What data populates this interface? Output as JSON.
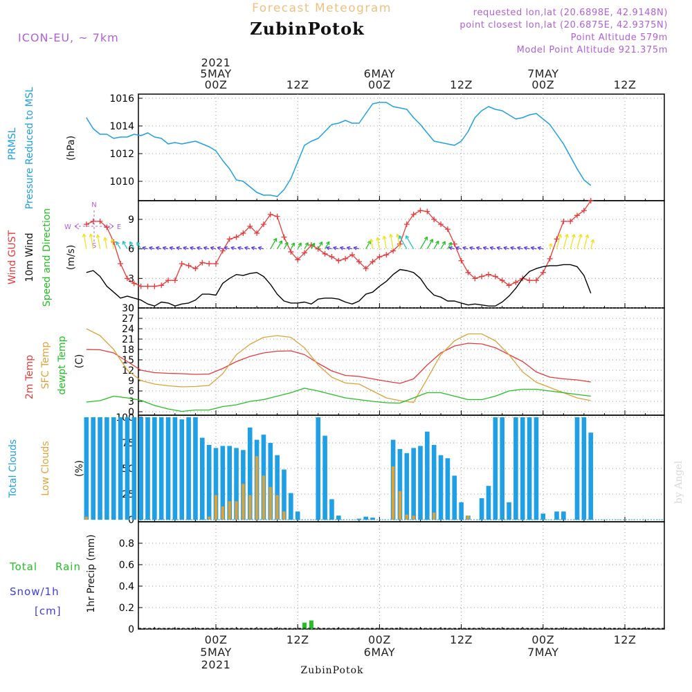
{
  "header": {
    "subtitle": "Forecast Meteogram",
    "location": "ZubinPotok",
    "model": "ICON-EU, ~ 7km",
    "requested": "requested lon,lat (20.6898E, 42.9148N)",
    "closest": "point closest lon,lat (20.6875E, 42.9375N)",
    "point_alt": "Point Altitude 579m",
    "model_alt": "Model Point Altitude 921.375m",
    "footer_location": "ZubinPotok",
    "watermark": "by Angel"
  },
  "time_axis": {
    "top": [
      {
        "h": 0,
        "lines": [
          "2021",
          "5MAY",
          "00Z"
        ]
      },
      {
        "h": 12,
        "lines": [
          "12Z"
        ]
      },
      {
        "h": 24,
        "lines": [
          "6MAY",
          "00Z"
        ]
      },
      {
        "h": 36,
        "lines": [
          "12Z"
        ]
      },
      {
        "h": 48,
        "lines": [
          "7MAY",
          "00Z"
        ]
      },
      {
        "h": 60,
        "lines": [
          "12Z"
        ]
      }
    ],
    "bottom": [
      {
        "h": 0,
        "lines": [
          "00Z",
          "5MAY",
          "2021"
        ]
      },
      {
        "h": 12,
        "lines": [
          "12Z"
        ]
      },
      {
        "h": 24,
        "lines": [
          "00Z",
          "6MAY"
        ]
      },
      {
        "h": 36,
        "lines": [
          "12Z"
        ]
      },
      {
        "h": 48,
        "lines": [
          "00Z",
          "7MAY"
        ]
      },
      {
        "h": 60,
        "lines": [
          "12Z"
        ]
      }
    ]
  },
  "panel_labels": {
    "prmsl": [
      "PRMSL",
      "Pressure Reduced to MSL",
      "(hPa)"
    ],
    "wind": [
      "Wind GUST",
      "10m Wind",
      "Speed and Direction",
      "(m/s)"
    ],
    "compass": {
      "n": "N",
      "s": "S",
      "w": "W",
      "e": "E"
    },
    "temp": [
      "2m Temp",
      "SFC Temp",
      "dewpt Temp",
      "(C)"
    ],
    "clouds": [
      "Total Clouds",
      "Low Clouds",
      "(%)"
    ],
    "precip": [
      "Total",
      "Rain",
      "Snow/1h",
      "[cm]",
      "1hr Precip (mm)"
    ]
  },
  "colors": {
    "pressure": "#1e9fe6",
    "gust": "#e8393a",
    "wind": "#000000",
    "t2m": "#e8393a",
    "tsfc": "#dca23a",
    "dewpt": "#22c022",
    "total_clouds": "#1e9fe6",
    "low_clouds": "#dca23a",
    "rain": "#22c022",
    "snow": "#3c3ce6",
    "label_purple": "#b060d8",
    "title_orange": "#f0c080"
  },
  "chart_data": [
    {
      "type": "line",
      "name": "prmsl",
      "ylabel": "(hPa)",
      "ylim": [
        1008.6,
        1016.3
      ],
      "yticks": [
        1010,
        1012,
        1014,
        1016
      ],
      "x_unit": "hours since 5MAY 00Z",
      "xlim": [
        -19,
        55
      ],
      "x": [
        -19,
        -18,
        -17,
        -16,
        -15,
        -14,
        -13,
        -12,
        -11,
        -10,
        -9,
        -8,
        -7,
        -6,
        -5,
        -4,
        -3,
        -2,
        -1,
        0,
        1,
        2,
        3,
        4,
        5,
        6,
        7,
        8,
        9,
        10,
        11,
        12,
        13,
        14,
        15,
        16,
        17,
        18,
        19,
        20,
        21,
        22,
        23,
        24,
        25,
        26,
        27,
        28,
        29,
        30,
        31,
        32,
        33,
        34,
        35,
        36,
        37,
        38,
        39,
        40,
        41,
        42,
        43,
        44,
        45,
        46,
        47,
        48,
        49,
        50,
        51,
        52,
        53,
        54,
        55
      ],
      "values": [
        1014.6,
        1013.8,
        1013.4,
        1013.4,
        1013.1,
        1013.2,
        1013.2,
        1013.4,
        1013.3,
        1013.5,
        1013.2,
        1013.1,
        1012.7,
        1012.8,
        1012.7,
        1012.8,
        1012.9,
        1012.7,
        1012.5,
        1012.2,
        1011.5,
        1010.9,
        1010.1,
        1010.0,
        1009.6,
        1009.2,
        1009.0,
        1009.0,
        1008.9,
        1009.4,
        1010.2,
        1011.4,
        1012.6,
        1012.9,
        1013.1,
        1013.6,
        1014.1,
        1014.2,
        1014.4,
        1014.2,
        1014.2,
        1014.9,
        1015.6,
        1015.7,
        1015.7,
        1015.4,
        1015.3,
        1015.2,
        1014.6,
        1014.1,
        1013.5,
        1012.9,
        1012.8,
        1012.7,
        1012.6,
        1012.9,
        1013.6,
        1014.6,
        1015.1,
        1015.4,
        1015.2,
        1015.1,
        1014.8,
        1014.5,
        1014.6,
        1014.8,
        1014.9,
        1014.5,
        1014.1,
        1013.4,
        1012.7,
        1011.8,
        1010.9,
        1010.1,
        1009.7
      ]
    },
    {
      "type": "line",
      "name": "wind",
      "ylabel": "(m/s)",
      "ylim": [
        0,
        10.9
      ],
      "yticks": [
        0,
        3,
        6,
        9
      ],
      "x_unit": "hours since 5MAY 00Z",
      "x": [
        -19,
        -18,
        -17,
        -16,
        -15,
        -14,
        -13,
        -12,
        -11,
        -10,
        -9,
        -8,
        -7,
        -6,
        -5,
        -4,
        -3,
        -2,
        -1,
        0,
        1,
        2,
        3,
        4,
        5,
        6,
        7,
        8,
        9,
        10,
        11,
        12,
        13,
        14,
        15,
        16,
        17,
        18,
        19,
        20,
        21,
        22,
        23,
        24,
        25,
        26,
        27,
        28,
        29,
        30,
        31,
        32,
        33,
        34,
        35,
        36,
        37,
        38,
        39,
        40,
        41,
        42,
        43,
        44,
        45,
        46,
        47,
        48,
        49,
        50,
        51,
        52,
        53,
        54,
        55
      ],
      "series": [
        {
          "name": "Wind GUST",
          "values": [
            8.5,
            8.8,
            8.8,
            8.2,
            6.7,
            4.5,
            3.0,
            2.5,
            2.2,
            2.2,
            2.2,
            2.3,
            2.8,
            2.8,
            4.5,
            4.3,
            4.0,
            4.6,
            4.5,
            4.5,
            5.8,
            7.0,
            7.2,
            7.6,
            8.3,
            7.6,
            8.5,
            9.5,
            9.3,
            7.2,
            5.7,
            4.9,
            5.6,
            6.4,
            6.0,
            5.5,
            5.2,
            4.8,
            5.0,
            5.4,
            4.7,
            4.0,
            4.7,
            5.2,
            5.4,
            5.8,
            6.5,
            8.5,
            9.5,
            9.9,
            9.8,
            9.0,
            8.5,
            8.0,
            6.5,
            4.8,
            3.6,
            3.0,
            3.2,
            3.4,
            3.2,
            2.8,
            2.3,
            2.6,
            3.0,
            2.8,
            2.8,
            3.6,
            5.0,
            7.0,
            8.8,
            8.8,
            9.4,
            9.9,
            10.9
          ]
        },
        {
          "name": "10m Wind",
          "values": [
            3.6,
            3.8,
            3.2,
            2.2,
            1.6,
            1.0,
            1.2,
            1.0,
            0.8,
            0.4,
            0.2,
            0.6,
            0.5,
            0.2,
            0.4,
            0.5,
            0.8,
            1.4,
            1.4,
            1.3,
            2.5,
            3.0,
            3.4,
            3.3,
            3.5,
            3.6,
            3.2,
            2.4,
            1.4,
            0.7,
            0.5,
            0.5,
            0.6,
            0.4,
            0.9,
            1.0,
            1.0,
            0.9,
            0.6,
            0.4,
            0.7,
            1.4,
            1.6,
            2.2,
            2.7,
            3.4,
            3.9,
            3.8,
            3.6,
            3.0,
            2.0,
            1.3,
            1.1,
            0.7,
            0.7,
            0.5,
            0.3,
            0.4,
            0.3,
            0.2,
            0.2,
            0.6,
            1.2,
            2.0,
            3.0,
            3.7,
            4.0,
            4.2,
            4.3,
            4.3,
            4.4,
            4.4,
            4.2,
            3.3,
            1.5
          ]
        }
      ]
    },
    {
      "type": "line",
      "name": "temperature",
      "ylabel": "(C)",
      "ylim": [
        -1,
        30
      ],
      "yticks": [
        0,
        3,
        6,
        9,
        12,
        15,
        18,
        21,
        24,
        27,
        30
      ],
      "x_unit": "hours since 5MAY 00Z",
      "x": [
        -19,
        -17,
        -15,
        -13,
        -11,
        -9,
        -7,
        -5,
        -3,
        -1,
        1,
        3,
        5,
        7,
        9,
        11,
        13,
        15,
        17,
        19,
        21,
        23,
        25,
        27,
        29,
        31,
        33,
        35,
        37,
        39,
        41,
        43,
        45,
        47,
        49,
        51,
        53,
        55
      ],
      "series": [
        {
          "name": "2m Temp",
          "values": [
            18.0,
            17.9,
            17.0,
            14.5,
            12.0,
            11.3,
            11.1,
            11.0,
            10.8,
            10.9,
            12.5,
            14.5,
            16.0,
            17.0,
            17.5,
            17.6,
            16.5,
            14.0,
            11.8,
            10.5,
            10.2,
            9.5,
            8.8,
            8.2,
            9.5,
            13.5,
            17.0,
            19.0,
            19.8,
            19.6,
            18.5,
            16.5,
            14.5,
            11.5,
            10.0,
            9.5,
            9.2,
            8.6
          ]
        },
        {
          "name": "SFC Temp",
          "values": [
            24.0,
            22.0,
            18.0,
            12.0,
            9.0,
            8.0,
            7.5,
            7.2,
            7.3,
            7.6,
            11.0,
            16.5,
            19.5,
            21.5,
            22.0,
            21.5,
            18.5,
            13.5,
            10.0,
            8.3,
            8.0,
            6.0,
            4.0,
            3.2,
            2.7,
            9.5,
            16.5,
            20.5,
            22.5,
            22.5,
            20.5,
            16.5,
            11.5,
            8.5,
            7.0,
            5.5,
            4.0,
            3.2
          ]
        },
        {
          "name": "dewpt Temp",
          "values": [
            2.8,
            3.2,
            4.5,
            4.0,
            3.3,
            1.8,
            0.8,
            0.1,
            0.5,
            0.5,
            1.5,
            2.0,
            3.0,
            3.5,
            4.5,
            5.5,
            6.8,
            6.0,
            5.0,
            4.0,
            3.5,
            3.0,
            2.6,
            2.5,
            4.0,
            5.5,
            5.5,
            4.5,
            3.5,
            3.5,
            4.5,
            6.0,
            6.5,
            6.5,
            6.0,
            5.5,
            5.0,
            4.5
          ]
        }
      ]
    },
    {
      "type": "bar",
      "name": "clouds",
      "ylabel": "(%)",
      "ylim": [
        -2,
        102
      ],
      "yticks": [
        0,
        25,
        50,
        75,
        100
      ],
      "x_unit": "hours since 5MAY 00Z",
      "x": [
        -19,
        -18,
        -17,
        -16,
        -15,
        -14,
        -13,
        -12,
        -11,
        -10,
        -9,
        -8,
        -7,
        -6,
        -5,
        -4,
        -3,
        -2,
        -1,
        0,
        1,
        2,
        3,
        4,
        5,
        6,
        7,
        8,
        9,
        10,
        11,
        12,
        13,
        14,
        15,
        16,
        17,
        18,
        19,
        20,
        21,
        22,
        23,
        24,
        25,
        26,
        27,
        28,
        29,
        30,
        31,
        32,
        33,
        34,
        35,
        36,
        37,
        38,
        39,
        40,
        41,
        42,
        43,
        44,
        45,
        46,
        47,
        48,
        49,
        50,
        51,
        52,
        53,
        54,
        55
      ],
      "series": [
        {
          "name": "Total Clouds",
          "values": [
            100,
            100,
            100,
            100,
            100,
            100,
            100,
            100,
            100,
            100,
            100,
            100,
            100,
            100,
            98,
            100,
            100,
            80,
            73,
            70,
            72,
            72,
            70,
            68,
            90,
            78,
            83,
            75,
            63,
            49,
            26,
            8,
            0,
            0,
            100,
            82,
            20,
            4,
            0,
            0,
            1,
            3,
            2,
            0,
            0,
            78,
            69,
            65,
            70,
            72,
            86,
            73,
            63,
            60,
            43,
            17,
            4,
            0,
            21,
            33,
            100,
            100,
            17,
            100,
            100,
            100,
            100,
            6,
            0,
            8,
            8,
            0,
            100,
            100,
            85
          ]
        },
        {
          "name": "Low Clouds",
          "values": [
            3,
            0,
            0,
            0,
            0,
            0,
            0,
            0,
            0,
            0,
            0,
            0,
            0,
            0,
            0,
            0,
            0,
            0,
            3,
            24,
            13,
            18,
            18,
            35,
            24,
            62,
            43,
            32,
            24,
            8,
            0,
            0,
            0,
            0,
            0,
            0,
            0,
            0,
            0,
            0,
            0,
            0,
            0,
            0,
            0,
            52,
            28,
            5,
            4,
            0,
            0,
            7,
            0,
            0,
            0,
            0,
            4,
            0,
            0,
            0,
            0,
            0,
            0,
            0,
            0,
            0,
            0,
            0,
            0,
            0,
            0,
            0,
            0,
            0,
            0
          ]
        }
      ]
    },
    {
      "type": "bar",
      "name": "precip",
      "ylabel": "1hr Precip (mm)",
      "ylim": [
        0,
        1.0
      ],
      "yticks": [
        0,
        0.2,
        0.4,
        0.6,
        0.8
      ],
      "x_unit": "hours since 5MAY 00Z",
      "x": [
        13,
        14
      ],
      "series": [
        {
          "name": "Total Rain",
          "values": [
            0.06,
            0.08
          ]
        }
      ]
    }
  ]
}
